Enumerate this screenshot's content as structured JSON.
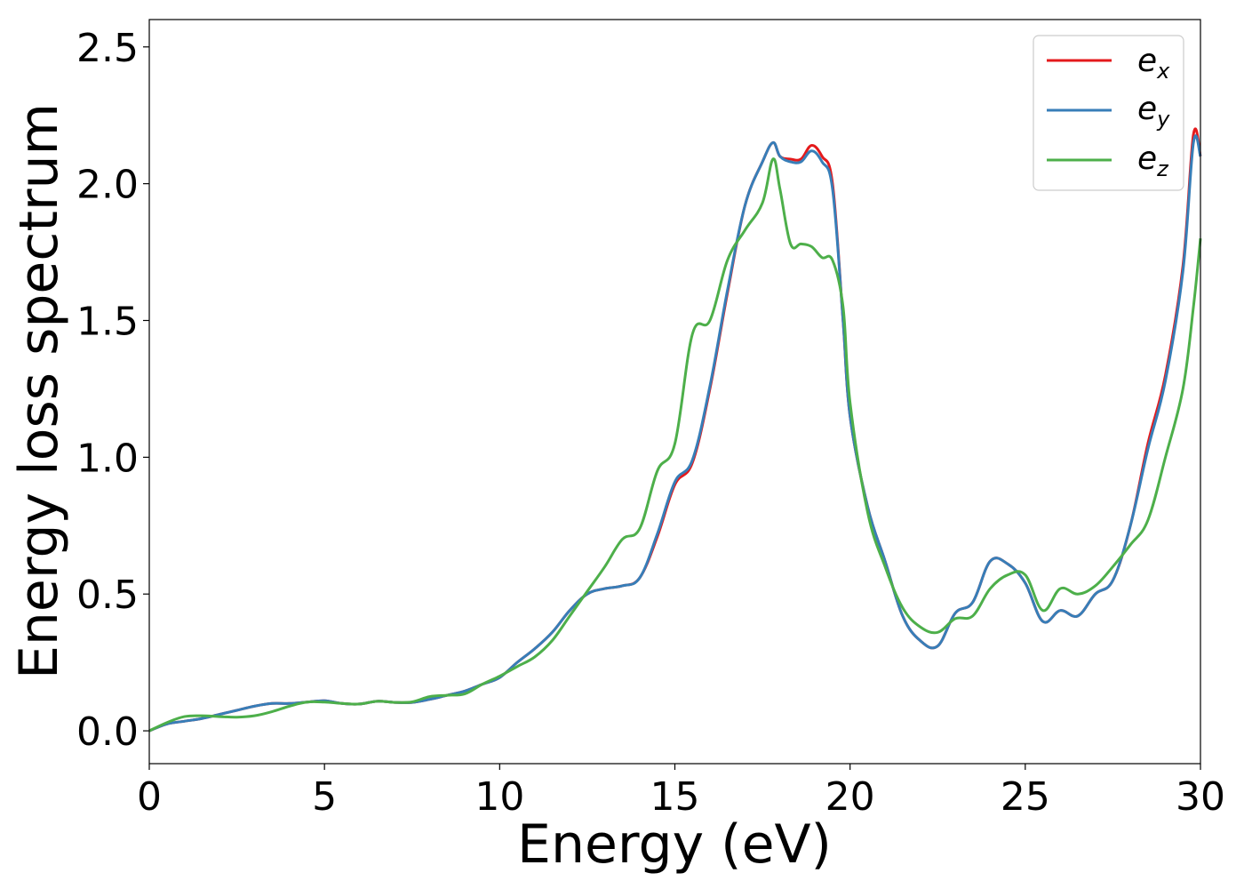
{
  "chart_data": {
    "type": "line",
    "title": "",
    "xlabel": "Energy (eV)",
    "ylabel": "Energy loss spectrum",
    "xlim": [
      0,
      30
    ],
    "ylim": [
      -0.12,
      2.6
    ],
    "xticks": [
      0,
      5,
      10,
      15,
      20,
      25,
      30
    ],
    "yticks": [
      0.0,
      0.5,
      1.0,
      1.5,
      2.0,
      2.5
    ],
    "xtick_labels": [
      "0",
      "5",
      "10",
      "15",
      "20",
      "25",
      "30"
    ],
    "ytick_labels": [
      "0.0",
      "0.5",
      "1.0",
      "1.5",
      "2.0",
      "2.5"
    ],
    "grid": false,
    "legend_position": "top-right",
    "series": [
      {
        "name": "e_x",
        "legend_base": "e",
        "legend_sub": "x",
        "color": "#e41a1c",
        "x": [
          0,
          0.5,
          1,
          1.5,
          2,
          2.5,
          3,
          3.5,
          4,
          4.5,
          5,
          5.5,
          6,
          6.5,
          7,
          7.5,
          8,
          8.5,
          9,
          9.5,
          10,
          10.5,
          11,
          11.5,
          12,
          12.5,
          13,
          13.5,
          14,
          14.5,
          15,
          15.5,
          16,
          16.5,
          17,
          17.5,
          17.8,
          18,
          18.3,
          18.6,
          18.9,
          19.2,
          19.5,
          19.8,
          20,
          20.5,
          21,
          21.5,
          22,
          22.5,
          23,
          23.5,
          24,
          24.5,
          25,
          25.5,
          26,
          26.5,
          27,
          27.5,
          28,
          28.5,
          29,
          29.5,
          29.8,
          30
        ],
        "values": [
          0.0,
          0.025,
          0.035,
          0.045,
          0.06,
          0.075,
          0.09,
          0.1,
          0.1,
          0.105,
          0.11,
          0.1,
          0.098,
          0.108,
          0.104,
          0.104,
          0.115,
          0.13,
          0.145,
          0.17,
          0.195,
          0.25,
          0.3,
          0.36,
          0.44,
          0.5,
          0.52,
          0.53,
          0.56,
          0.71,
          0.9,
          0.98,
          1.25,
          1.6,
          1.92,
          2.08,
          2.15,
          2.1,
          2.09,
          2.09,
          2.14,
          2.1,
          2.0,
          1.5,
          1.15,
          0.82,
          0.62,
          0.42,
          0.33,
          0.31,
          0.43,
          0.47,
          0.62,
          0.61,
          0.54,
          0.4,
          0.44,
          0.42,
          0.5,
          0.55,
          0.75,
          1.05,
          1.3,
          1.7,
          2.18,
          2.1
        ]
      },
      {
        "name": "e_y",
        "legend_base": "e",
        "legend_sub": "y",
        "color": "#377eb8",
        "x": [
          0,
          0.5,
          1,
          1.5,
          2,
          2.5,
          3,
          3.5,
          4,
          4.5,
          5,
          5.5,
          6,
          6.5,
          7,
          7.5,
          8,
          8.5,
          9,
          9.5,
          10,
          10.5,
          11,
          11.5,
          12,
          12.5,
          13,
          13.5,
          14,
          14.5,
          15,
          15.5,
          16,
          16.5,
          17,
          17.5,
          17.8,
          18,
          18.3,
          18.6,
          18.9,
          19.2,
          19.5,
          19.8,
          20,
          20.5,
          21,
          21.5,
          22,
          22.5,
          23,
          23.5,
          24,
          24.5,
          25,
          25.5,
          26,
          26.5,
          27,
          27.5,
          28,
          28.5,
          29,
          29.5,
          29.8,
          30
        ],
        "values": [
          0.0,
          0.025,
          0.035,
          0.045,
          0.06,
          0.075,
          0.09,
          0.1,
          0.1,
          0.105,
          0.11,
          0.1,
          0.098,
          0.108,
          0.104,
          0.104,
          0.115,
          0.13,
          0.145,
          0.17,
          0.195,
          0.25,
          0.3,
          0.36,
          0.44,
          0.5,
          0.52,
          0.53,
          0.56,
          0.72,
          0.91,
          0.99,
          1.26,
          1.61,
          1.92,
          2.08,
          2.15,
          2.1,
          2.08,
          2.08,
          2.12,
          2.08,
          1.98,
          1.5,
          1.15,
          0.82,
          0.62,
          0.42,
          0.33,
          0.31,
          0.43,
          0.47,
          0.62,
          0.61,
          0.54,
          0.4,
          0.44,
          0.42,
          0.5,
          0.55,
          0.75,
          1.03,
          1.28,
          1.68,
          2.15,
          2.1
        ]
      },
      {
        "name": "e_z",
        "legend_base": "e",
        "legend_sub": "z",
        "color": "#4daf4a",
        "x": [
          0,
          0.5,
          1,
          1.5,
          2,
          2.5,
          3,
          3.5,
          4,
          4.5,
          5,
          5.5,
          6,
          6.5,
          7,
          7.5,
          8,
          8.5,
          9,
          9.5,
          10,
          10.5,
          11,
          11.5,
          12,
          12.5,
          13,
          13.5,
          14,
          14.5,
          15,
          15.5,
          16,
          16.5,
          17,
          17.5,
          17.8,
          18,
          18.3,
          18.6,
          18.9,
          19.2,
          19.5,
          19.8,
          20,
          20.5,
          21,
          21.5,
          22,
          22.5,
          23,
          23.5,
          24,
          24.5,
          25,
          25.5,
          26,
          26.5,
          27,
          27.5,
          28,
          28.5,
          29,
          29.5,
          29.8,
          30
        ],
        "values": [
          0.0,
          0.03,
          0.052,
          0.055,
          0.052,
          0.05,
          0.055,
          0.07,
          0.09,
          0.105,
          0.105,
          0.1,
          0.098,
          0.108,
          0.104,
          0.106,
          0.125,
          0.13,
          0.135,
          0.17,
          0.2,
          0.235,
          0.27,
          0.33,
          0.42,
          0.51,
          0.6,
          0.7,
          0.74,
          0.95,
          1.05,
          1.45,
          1.5,
          1.72,
          1.83,
          1.93,
          2.09,
          1.98,
          1.78,
          1.78,
          1.77,
          1.73,
          1.72,
          1.55,
          1.2,
          0.8,
          0.6,
          0.45,
          0.38,
          0.36,
          0.41,
          0.42,
          0.52,
          0.57,
          0.57,
          0.44,
          0.52,
          0.5,
          0.53,
          0.6,
          0.68,
          0.77,
          1.0,
          1.25,
          1.55,
          1.8
        ]
      }
    ]
  }
}
